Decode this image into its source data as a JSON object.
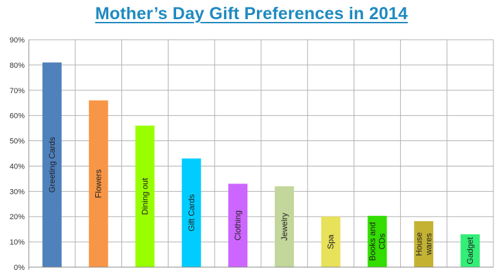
{
  "chart_data": {
    "type": "bar",
    "title": "Mother’s Day Gift Preferences in 2014",
    "xlabel": "",
    "ylabel": "",
    "ylim": [
      0,
      90
    ],
    "ytick_step": 10,
    "ytick_suffix": "%",
    "grid": true,
    "legend": "none",
    "categories": [
      "Greeting Cards",
      "Flowers",
      "Dining out",
      "Gift Cards",
      "Clothing",
      "Jewelry",
      "Spa",
      "Books and CDs",
      "House wares",
      "Gadget"
    ],
    "label_lines": [
      [
        "Greeting Cards"
      ],
      [
        "Flowers"
      ],
      [
        "Dining out"
      ],
      [
        "Gift Cards"
      ],
      [
        "Clothing"
      ],
      [
        "Jewelry"
      ],
      [
        "Spa"
      ],
      [
        "Books and",
        "CDs"
      ],
      [
        "House",
        "wares"
      ],
      [
        "Gadget"
      ]
    ],
    "values": [
      81,
      66,
      56,
      43,
      33,
      32,
      20,
      20.3,
      18.2,
      13
    ],
    "colors": [
      "#4f81bd",
      "#f79646",
      "#99ff00",
      "#00ccff",
      "#cc66ff",
      "#c3d69b",
      "#e8e15a",
      "#33dd00",
      "#c4b233",
      "#33ee77"
    ]
  }
}
